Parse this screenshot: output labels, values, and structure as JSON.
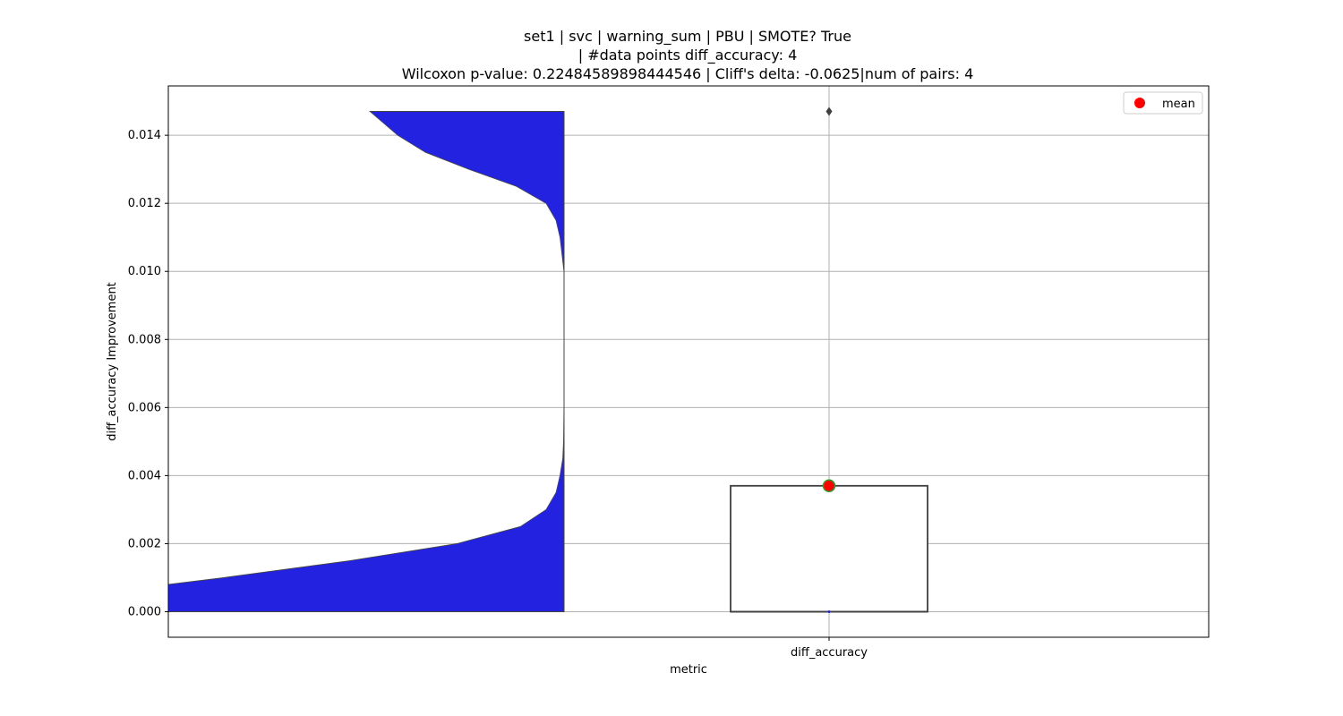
{
  "chart_data": {
    "type": "violin",
    "title_lines": [
      "set1 | svc | warning_sum | PBU | SMOTE? True",
      "| #data points diff_accuracy: 4",
      "Wilcoxon p-value: 0.22484589898444546 | Cliff's delta: -0.0625|num of pairs: 4"
    ],
    "xlabel": "metric",
    "ylabel": "diff_accuracy Improvement",
    "categories": [
      "diff_accuracy"
    ],
    "ylim": [
      -0.00075,
      0.01545
    ],
    "yticks": [
      0.0,
      0.002,
      0.004,
      0.006,
      0.008,
      0.01,
      0.012,
      0.014
    ],
    "ytick_labels": [
      "0.000",
      "0.002",
      "0.004",
      "0.006",
      "0.008",
      "0.010",
      "0.012",
      "0.014"
    ],
    "grid": true,
    "legend": {
      "position": "top-right",
      "entries": [
        {
          "label": "mean",
          "color": "#ff0000"
        }
      ]
    },
    "violin": {
      "color": "#2222e0",
      "edge_color": "#444444",
      "side": "left",
      "y_min": 0.0,
      "y_max": 0.0147,
      "density_profile": [
        [
          0.0,
          1.0
        ],
        [
          0.0008,
          1.0
        ],
        [
          0.001,
          0.86
        ],
        [
          0.0015,
          0.54
        ],
        [
          0.002,
          0.27
        ],
        [
          0.0025,
          0.11
        ],
        [
          0.003,
          0.045
        ],
        [
          0.0035,
          0.02
        ],
        [
          0.004,
          0.01
        ],
        [
          0.0045,
          0.003
        ],
        [
          0.005,
          0.001
        ],
        [
          0.006,
          0.0
        ],
        [
          0.008,
          0.0
        ],
        [
          0.01,
          0.0
        ],
        [
          0.0105,
          0.005
        ],
        [
          0.011,
          0.01
        ],
        [
          0.0115,
          0.02
        ],
        [
          0.012,
          0.045
        ],
        [
          0.0125,
          0.12
        ],
        [
          0.013,
          0.24
        ],
        [
          0.0135,
          0.35
        ],
        [
          0.014,
          0.42
        ],
        [
          0.0145,
          0.47
        ],
        [
          0.0147,
          0.49
        ]
      ]
    },
    "box": {
      "q1": 0.0,
      "q3": 0.0037,
      "median": 0.0,
      "whisker_low": 0.0,
      "whisker_high": 0.0037,
      "outliers": [
        0.0147
      ],
      "mean": 0.0037,
      "mean_color": "#ff0000",
      "mean_edge_color": "#2ca02c"
    }
  }
}
